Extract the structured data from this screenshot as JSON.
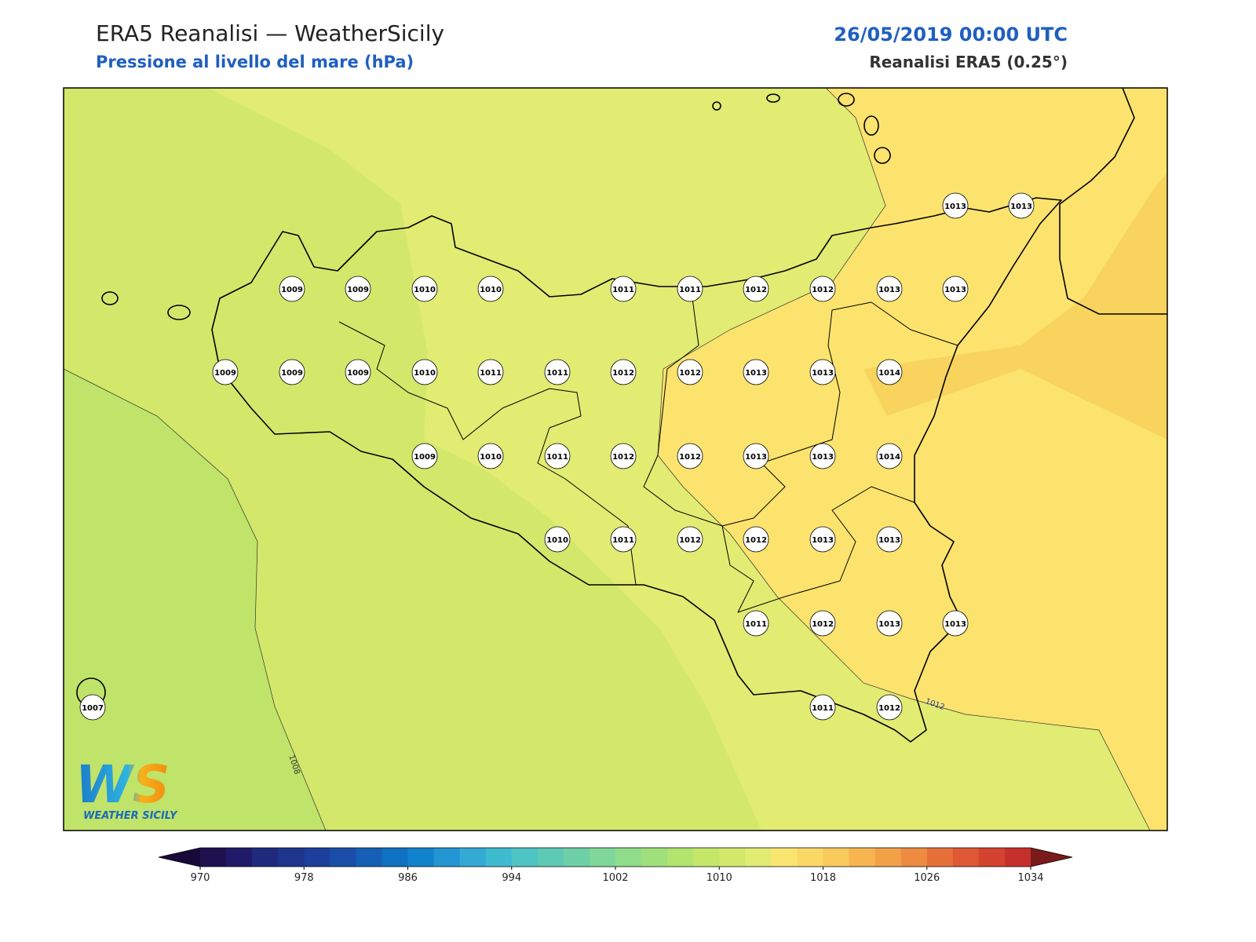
{
  "header": {
    "title": "ERA5 Reanalisi — WeatherSicily",
    "subtitle": "Pressione al livello del mare (hPa)",
    "date": "26/05/2019 00:00 UTC",
    "source": "Reanalisi ERA5 (0.25°)"
  },
  "stations": [
    1013,
    1013,
    1009,
    1009,
    1010,
    1010,
    1011,
    1011,
    1012,
    1012,
    1013,
    1013,
    1009,
    1009,
    1009,
    1010,
    1011,
    1011,
    1012,
    1012,
    1013,
    1013,
    1014,
    1009,
    1010,
    1011,
    1012,
    1012,
    1013,
    1013,
    1014,
    1010,
    1011,
    1012,
    1012,
    1013,
    1013,
    1011,
    1012,
    1013,
    1013,
    1007,
    1011,
    1012
  ],
  "contour_labels": [
    1008,
    1012
  ],
  "colorbar": {
    "range": [
      970,
      1034
    ],
    "ticks": [
      970,
      978,
      986,
      994,
      1002,
      1010,
      1018,
      1026,
      1034
    ],
    "colors": [
      "#1f1150",
      "#201a68",
      "#1f2a7d",
      "#1d358c",
      "#1b3f9a",
      "#1a4ea8",
      "#1560b5",
      "#0f72c2",
      "#1183cc",
      "#2395d2",
      "#33a9d4",
      "#3fbbd0",
      "#4ec4c4",
      "#5ecab5",
      "#6dd0a7",
      "#7fd799",
      "#8fdc8b",
      "#a0e07c",
      "#b2e46f",
      "#c4e769",
      "#d3e86a",
      "#e2eb72",
      "#f9e570",
      "#fbd865",
      "#f9c95c",
      "#f6b551",
      "#f3a148",
      "#ee8b41",
      "#e6703a",
      "#de5934",
      "#d4432f",
      "#c5302c"
    ],
    "extend_colors": [
      "#170a3a",
      "#7a1a1a"
    ]
  },
  "logo": {
    "mark": "WS",
    "text": "WEATHER SICILY"
  }
}
